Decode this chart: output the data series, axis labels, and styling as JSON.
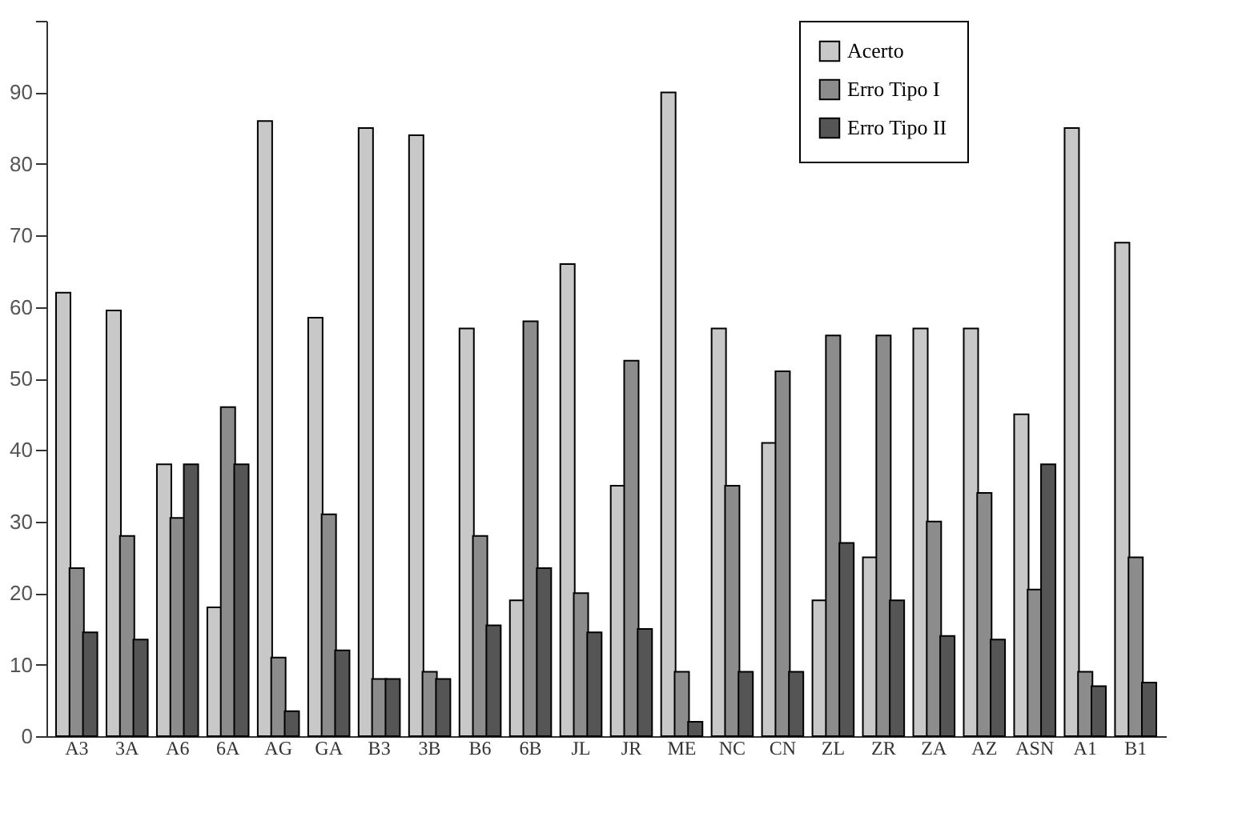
{
  "chart_data": {
    "type": "bar",
    "categories": [
      "A3",
      "3A",
      "A6",
      "6A",
      "AG",
      "GA",
      "B3",
      "3B",
      "B6",
      "6B",
      "JL",
      "JR",
      "ME",
      "NC",
      "CN",
      "ZL",
      "ZR",
      "ZA",
      "AZ",
      "ASN",
      "A1",
      "B1"
    ],
    "series": [
      {
        "name": "Acerto",
        "color": "#c8c8c8",
        "values": [
          62,
          59.5,
          38,
          18,
          86,
          58.5,
          85,
          84,
          57,
          19,
          66,
          35,
          90,
          57,
          41,
          19,
          25,
          57,
          57,
          45,
          85,
          69
        ]
      },
      {
        "name": "Erro Tipo I",
        "color": "#8c8c8c",
        "values": [
          23.5,
          28,
          30.5,
          46,
          11,
          31,
          8,
          9,
          28,
          58,
          20,
          52.5,
          9,
          35,
          51,
          56,
          56,
          30,
          34,
          20.5,
          9,
          25
        ]
      },
      {
        "name": "Erro Tipo II",
        "color": "#555555",
        "values": [
          14.5,
          13.5,
          38,
          38,
          3.5,
          12,
          8,
          8,
          15.5,
          23.5,
          14.5,
          15,
          2,
          9,
          9,
          27,
          19,
          14,
          13.5,
          38,
          7,
          7.5
        ]
      }
    ],
    "ylim": [
      0,
      100
    ],
    "yticks": [
      0,
      10,
      20,
      30,
      40,
      50,
      60,
      70,
      80,
      90,
      {
        "value": 100,
        "label": null
      }
    ],
    "grid": false,
    "legend": "top right"
  }
}
